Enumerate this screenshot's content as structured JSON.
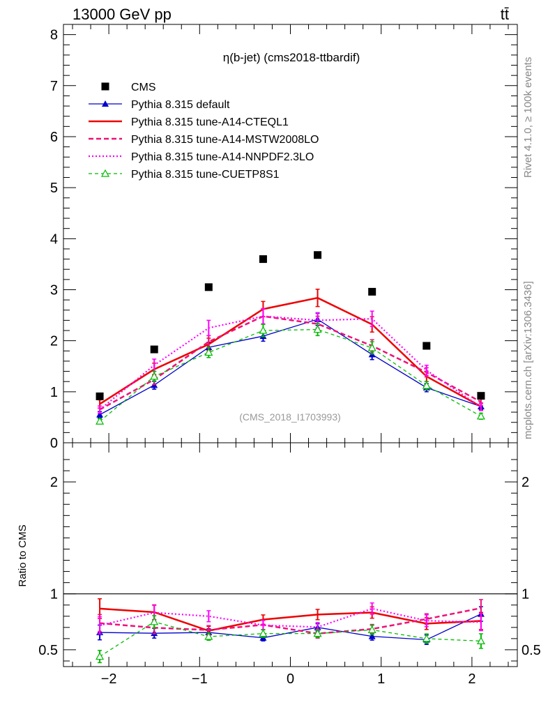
{
  "header": {
    "left": "13000 GeV pp",
    "right": "tt̄"
  },
  "side": {
    "rivet": "Rivet 4.1.0, ≥ 100k events",
    "mcplots": "mcplots.cern.ch [arXiv:1306.3436]"
  },
  "chart_data": {
    "type": "line",
    "title": "η(b-jet) (cms2018-ttbardif)",
    "analysis_label": "(CMS_2018_I1703993)",
    "x": [
      -2.1,
      -1.5,
      -0.9,
      -0.3,
      0.3,
      0.9,
      1.5,
      2.1
    ],
    "xlim": [
      -2.5,
      2.5
    ],
    "xticks": [
      -2,
      -1,
      0,
      1,
      2
    ],
    "xtick_labels": [
      "−2",
      "−1",
      "0",
      "1",
      "2"
    ],
    "main": {
      "ylim": [
        0,
        8.2
      ],
      "yticks": [
        0,
        1,
        2,
        3,
        4,
        5,
        6,
        7,
        8
      ],
      "ytick_labels": [
        "0",
        "1",
        "2",
        "3",
        "4",
        "5",
        "6",
        "7",
        "8"
      ]
    },
    "ratio": {
      "ylabel": "Ratio to CMS",
      "ylim": [
        0.35,
        2.35
      ],
      "yticks": [
        0.5,
        1,
        2
      ],
      "ytick_labels": [
        "0.5",
        "1",
        "2"
      ]
    },
    "data": {
      "name": "CMS",
      "values": [
        0.91,
        1.83,
        3.05,
        3.6,
        3.68,
        2.96,
        1.9,
        0.92
      ]
    },
    "series": [
      {
        "name": "Pythia 8.315 default",
        "color": "#0000cc",
        "values": [
          0.55,
          1.13,
          1.87,
          2.09,
          2.42,
          1.73,
          1.08,
          0.71
        ],
        "errors": [
          0.06,
          0.08,
          0.1,
          0.1,
          0.12,
          0.1,
          0.08,
          0.06
        ]
      },
      {
        "name": "Pythia 8.315 tune-A14-CTEQL1",
        "color": "#ee0000",
        "values": [
          0.76,
          1.44,
          1.93,
          2.62,
          2.84,
          2.32,
          1.3,
          0.71
        ],
        "errors": [
          0.08,
          0.12,
          0.12,
          0.15,
          0.17,
          0.15,
          0.1,
          0.07
        ]
      },
      {
        "name": "Pythia 8.315 tune-A14-MSTW2008LO",
        "color": "#ee1177",
        "values": [
          0.65,
          1.24,
          1.98,
          2.48,
          2.33,
          1.9,
          1.38,
          0.8
        ],
        "errors": [
          0.07,
          0.1,
          0.12,
          0.15,
          0.15,
          0.12,
          0.09,
          0.07
        ]
      },
      {
        "name": "Pythia 8.315 tune-A14-NNPDF2.3LO",
        "color": "#ff00ff",
        "values": [
          0.65,
          1.52,
          2.25,
          2.48,
          2.4,
          2.43,
          1.42,
          0.7
        ],
        "errors": [
          0.07,
          0.12,
          0.15,
          0.15,
          0.15,
          0.15,
          0.1,
          0.07
        ]
      },
      {
        "name": "Pythia 8.315 tune-CUETP8S1",
        "color": "#00bb00",
        "values": [
          0.42,
          1.3,
          1.77,
          2.2,
          2.22,
          1.86,
          1.12,
          0.52
        ],
        "errors": [
          0.05,
          0.1,
          0.1,
          0.12,
          0.12,
          0.12,
          0.08,
          0.06
        ]
      }
    ],
    "ratio_series": [
      {
        "name": "Pythia 8.315 default",
        "values": [
          0.655,
          0.648,
          0.655,
          0.607,
          0.7,
          0.62,
          0.59,
          0.82
        ]
      },
      {
        "name": "Pythia 8.315 tune-A14-CTEQL1",
        "values": [
          0.868,
          0.836,
          0.67,
          0.77,
          0.815,
          0.833,
          0.734,
          0.758
        ]
      },
      {
        "name": "Pythia 8.315 tune-A14-MSTW2008LO",
        "values": [
          0.738,
          0.697,
          0.677,
          0.723,
          0.645,
          0.686,
          0.775,
          0.873
        ]
      },
      {
        "name": "Pythia 8.315 tune-A14-NNPDF2.3LO",
        "values": [
          0.718,
          0.832,
          0.8,
          0.72,
          0.703,
          0.868,
          0.76,
          0.747
        ]
      },
      {
        "name": "Pythia 8.315 tune-CUETP8S1",
        "values": [
          0.44,
          0.75,
          0.618,
          0.645,
          0.645,
          0.678,
          0.6,
          0.578
        ]
      }
    ]
  }
}
